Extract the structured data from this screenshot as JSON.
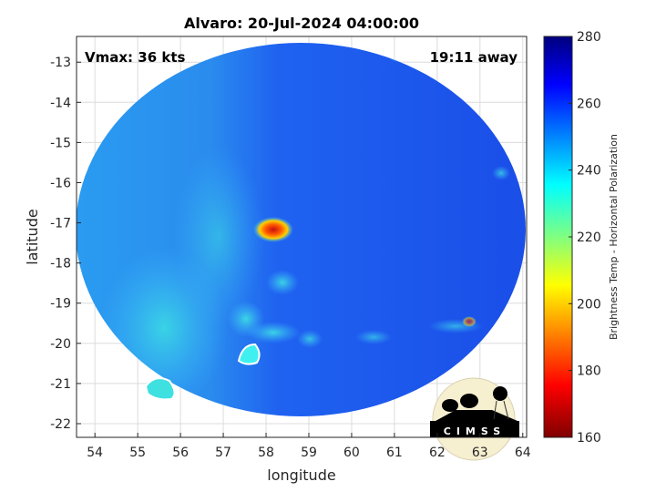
{
  "title": "Alvaro: 20-Jul-2024 04:00:00",
  "annotations": {
    "vmax": "Vmax: 36 kts",
    "away": "19:11 away"
  },
  "axes": {
    "xlabel": "longitude",
    "ylabel": "latitude",
    "xticks": [
      "54",
      "55",
      "56",
      "57",
      "58",
      "59",
      "60",
      "61",
      "62",
      "63",
      "64"
    ],
    "yticks": [
      "-13",
      "-14",
      "-15",
      "-16",
      "-17",
      "-18",
      "-19",
      "-20",
      "-21",
      "-22"
    ],
    "xlim": [
      53.57,
      64.09
    ],
    "ylim": [
      -22.34,
      -12.36
    ],
    "grid": true
  },
  "colorbar": {
    "label": "Brightness Temp - Horizontal Polarization",
    "ticks": [
      "280",
      "260",
      "240",
      "220",
      "200",
      "180",
      "160"
    ],
    "range": [
      160,
      280
    ],
    "colormap": "jet"
  },
  "chart_data": {
    "type": "heatmap",
    "title": "Alvaro: 20-Jul-2024 04:00:00",
    "xlabel": "longitude",
    "ylabel": "latitude",
    "colorbar_label": "Brightness Temp - Horizontal Polarization",
    "min_feature": {
      "lon": 58.0,
      "lat": -17.2,
      "value_approx": 180
    }
  },
  "logo": {
    "text": "CIMSS"
  },
  "colors": {
    "disk_base": "#1f5cf0",
    "warm_core": "#e0201a",
    "land_outline": "#ffffff"
  }
}
